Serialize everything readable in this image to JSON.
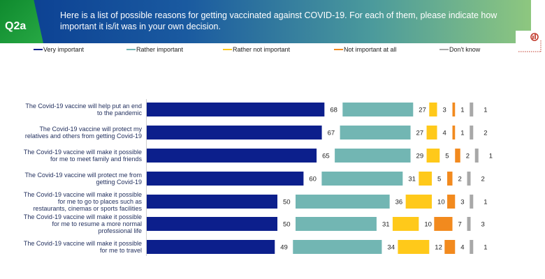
{
  "header": {
    "question_id": "Q2a",
    "title": "Here is a list of possible reasons for getting vaccinated against COVID-19. For each of them, please indicate how important it is/it was in your own decision."
  },
  "colors": {
    "very_important": "#0c1f8c",
    "rather_important": "#72b6b3",
    "rather_not_important": "#ffc91a",
    "not_important_at_all": "#f28a1e",
    "dont_know": "#a8a8a8",
    "label_text": "#1f2d5c"
  },
  "chart_data": {
    "type": "bar",
    "orientation": "horizontal",
    "stacking": "grouped-offset",
    "grid": false,
    "legend_position": "top",
    "categories": [
      [
        "The Covid-19 vaccine will help put an end",
        "to the pandemic"
      ],
      [
        "The Covid-19 vaccine will protect my",
        "relatives and others from getting Covid-19"
      ],
      [
        "The Covid-19 vaccine will make it possible",
        "for me to meet family and friends"
      ],
      [
        "The Covid-19 vaccine will protect me from",
        "getting Covid-19"
      ],
      [
        "The Covid-19 vaccine will make it possible",
        "for me to go to places such as",
        "restaurants, cinemas or sports facilities"
      ],
      [
        "The Covid-19 vaccine will make it possible",
        "for me to resume a more normal",
        "professional life"
      ],
      [
        "The Covid-19 vaccine will make it possible",
        "for me to travel"
      ]
    ],
    "series": [
      {
        "name": "Very important",
        "color": "#0c1f8c",
        "values": [
          68,
          67,
          65,
          60,
          50,
          50,
          49
        ]
      },
      {
        "name": "Rather important",
        "color": "#72b6b3",
        "values": [
          27,
          27,
          29,
          31,
          36,
          31,
          34
        ]
      },
      {
        "name": "Rather not important",
        "color": "#ffc91a",
        "values": [
          3,
          4,
          5,
          5,
          10,
          10,
          12
        ]
      },
      {
        "name": "Not important at all",
        "color": "#f28a1e",
        "values": [
          1,
          1,
          2,
          2,
          3,
          7,
          4
        ]
      },
      {
        "name": "Don't know",
        "color": "#a8a8a8",
        "values": [
          1,
          2,
          1,
          2,
          1,
          3,
          1
        ]
      }
    ]
  }
}
